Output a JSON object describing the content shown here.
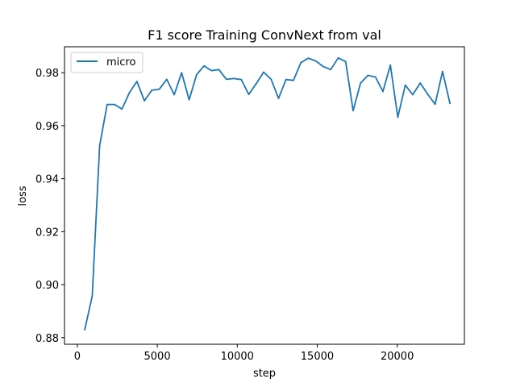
{
  "chart_data": {
    "type": "line",
    "title": "F1 score Training ConvNext from val",
    "xlabel": "step",
    "ylabel": "loss",
    "xlim": [
      -800,
      24200
    ],
    "ylim": [
      0.8775,
      0.9898
    ],
    "xticks": [
      0,
      5000,
      10000,
      15000,
      20000
    ],
    "xtick_labels": [
      "0",
      "5000",
      "10000",
      "15000",
      "20000"
    ],
    "yticks": [
      0.88,
      0.9,
      0.92,
      0.94,
      0.96,
      0.98
    ],
    "ytick_labels": [
      "0.88",
      "0.90",
      "0.92",
      "0.94",
      "0.96",
      "0.98"
    ],
    "grid": false,
    "legend_position": "upper-left",
    "series": [
      {
        "name": "micro",
        "color": "#1f77b4",
        "x": [
          466,
          932,
          1398,
          1864,
          2330,
          2796,
          3262,
          3728,
          4194,
          4660,
          5126,
          5592,
          6058,
          6524,
          6990,
          7456,
          7922,
          8388,
          8854,
          9320,
          9786,
          10252,
          10718,
          11184,
          11650,
          12116,
          12582,
          13048,
          13514,
          13980,
          14446,
          14912,
          15378,
          15844,
          16310,
          16776,
          17242,
          17708,
          18174,
          18640,
          19106,
          19572,
          20038,
          20504,
          20970,
          21436,
          21902,
          22368,
          22834,
          23300
        ],
        "y": [
          0.883,
          0.8957,
          0.9525,
          0.968,
          0.968,
          0.9663,
          0.9725,
          0.9767,
          0.9694,
          0.9734,
          0.9738,
          0.9775,
          0.9717,
          0.98,
          0.9698,
          0.9792,
          0.9826,
          0.9808,
          0.9812,
          0.9775,
          0.9778,
          0.9774,
          0.9718,
          0.9759,
          0.9802,
          0.9775,
          0.9703,
          0.9774,
          0.9771,
          0.9838,
          0.9855,
          0.9844,
          0.9823,
          0.9812,
          0.9856,
          0.9842,
          0.9657,
          0.9761,
          0.979,
          0.9784,
          0.9729,
          0.9829,
          0.9632,
          0.9753,
          0.9717,
          0.9761,
          0.9719,
          0.9681,
          0.9805,
          0.9684
        ]
      }
    ]
  }
}
